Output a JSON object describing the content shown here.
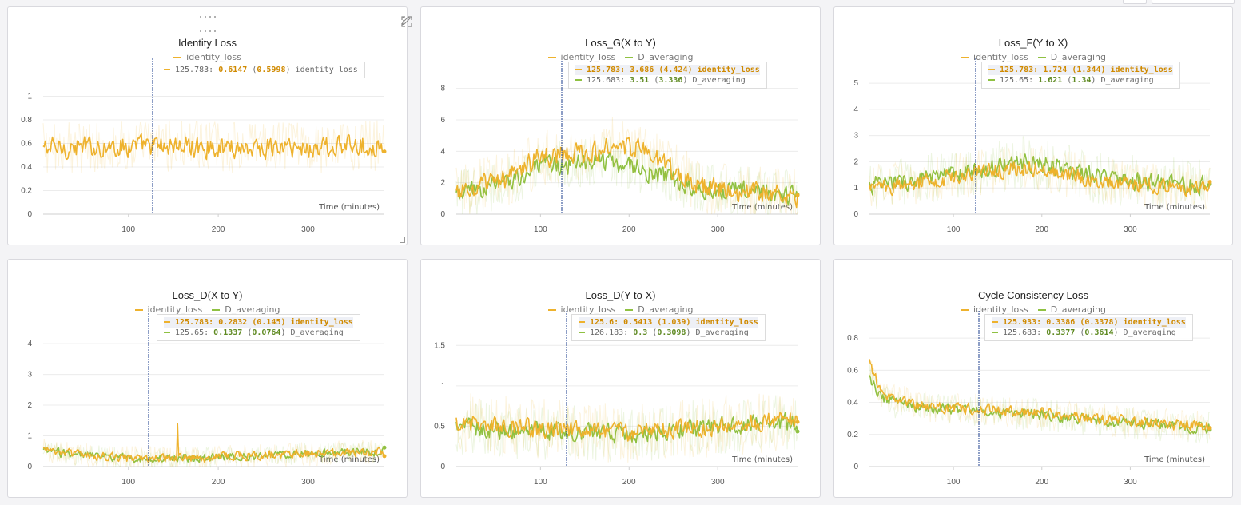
{
  "colors": {
    "identity_loss": "#EEB22D",
    "D_averaging": "#8FC142",
    "crosshair": "#1B3C8C",
    "grid": "#ececec",
    "axis": "#999999"
  },
  "legend": {
    "identity_loss": "identity_loss",
    "D_averaging": "D_averaging"
  },
  "panel_tools": {
    "drag": "drag-handle-icon",
    "edit": "pencil-icon",
    "fullscreen": "expand-icon",
    "menu": "more-vertical-icon"
  },
  "chart_data": [
    {
      "id": "identity",
      "type": "line",
      "title": "Identity Loss",
      "xlabel": "Time (minutes)",
      "ylabel": "",
      "xlim": [
        5,
        385
      ],
      "ylim": [
        0,
        1.2
      ],
      "xticks": [
        "100",
        "200",
        "300"
      ],
      "yticks": [
        "0",
        "0.2",
        "0.4",
        "0.6",
        "0.8",
        "1"
      ],
      "series": [
        {
          "name": "identity_loss",
          "key": "identity_loss",
          "noise": 0.08,
          "raw_noise": 0.22,
          "knots": [
            [
              5,
              0.56
            ],
            [
              60,
              0.57
            ],
            [
              120,
              0.58
            ],
            [
              200,
              0.57
            ],
            [
              300,
              0.56
            ],
            [
              385,
              0.59
            ]
          ]
        }
      ],
      "crosshair_x": 125.783,
      "tooltip": [
        {
          "x": "125.783",
          "value": "0.6147",
          "smoothed": "0.5998",
          "name": "identity_loss",
          "key": "identity_loss",
          "highlight": false
        }
      ]
    },
    {
      "id": "loss_g",
      "type": "line",
      "title": "Loss_G(X to Y)",
      "xlabel": "Time (minutes)",
      "ylabel": "",
      "xlim": [
        5,
        390
      ],
      "ylim": [
        0,
        9
      ],
      "xticks": [
        "100",
        "200",
        "300"
      ],
      "yticks": [
        "0",
        "2",
        "4",
        "6",
        "8"
      ],
      "series": [
        {
          "name": "D_averaging",
          "key": "D_averaging",
          "noise": 0.55,
          "raw_noise": 1.6,
          "knots": [
            [
              5,
              1.2
            ],
            [
              60,
              2.0
            ],
            [
              100,
              3.0
            ],
            [
              130,
              3.2
            ],
            [
              180,
              3.4
            ],
            [
              220,
              2.8
            ],
            [
              260,
              1.9
            ],
            [
              300,
              1.6
            ],
            [
              390,
              1.2
            ]
          ]
        },
        {
          "name": "identity_loss",
          "key": "identity_loss",
          "noise": 0.6,
          "raw_noise": 1.8,
          "knots": [
            [
              5,
              1.3
            ],
            [
              60,
              2.2
            ],
            [
              100,
              3.6
            ],
            [
              130,
              3.7
            ],
            [
              180,
              4.4
            ],
            [
              220,
              4.0
            ],
            [
              250,
              2.8
            ],
            [
              280,
              1.8
            ],
            [
              330,
              1.4
            ],
            [
              390,
              1.2
            ]
          ]
        }
      ],
      "crosshair_x": 125.783,
      "tooltip": [
        {
          "x": "125.783",
          "value": "3.686",
          "smoothed": "4.424",
          "name": "identity_loss",
          "key": "identity_loss",
          "highlight": true
        },
        {
          "x": "125.683",
          "value": "3.51",
          "smoothed": "3.336",
          "name": "D_averaging",
          "key": "D_averaging",
          "highlight": false
        }
      ]
    },
    {
      "id": "loss_f",
      "type": "line",
      "title": "Loss_F(Y to X)",
      "xlabel": "Time (minutes)",
      "ylabel": "",
      "xlim": [
        5,
        390
      ],
      "ylim": [
        0,
        5.4
      ],
      "xticks": [
        "100",
        "200",
        "300"
      ],
      "yticks": [
        "0",
        "1",
        "2",
        "3",
        "4",
        "5"
      ],
      "series": [
        {
          "name": "D_averaging",
          "key": "D_averaging",
          "noise": 0.3,
          "raw_noise": 1.0,
          "knots": [
            [
              5,
              1.1
            ],
            [
              60,
              1.3
            ],
            [
              120,
              1.6
            ],
            [
              180,
              2.0
            ],
            [
              220,
              1.8
            ],
            [
              260,
              1.4
            ],
            [
              320,
              1.2
            ],
            [
              390,
              1.1
            ]
          ]
        },
        {
          "name": "identity_loss",
          "key": "identity_loss",
          "noise": 0.28,
          "raw_noise": 0.9,
          "knots": [
            [
              5,
              1.0
            ],
            [
              60,
              1.2
            ],
            [
              120,
              1.5
            ],
            [
              180,
              1.8
            ],
            [
              220,
              1.6
            ],
            [
              260,
              1.3
            ],
            [
              320,
              1.1
            ],
            [
              390,
              1.0
            ]
          ]
        }
      ],
      "crosshair_x": 125.783,
      "tooltip": [
        {
          "x": "125.783",
          "value": "1.724",
          "smoothed": "1.344",
          "name": "identity_loss",
          "key": "identity_loss",
          "highlight": true
        },
        {
          "x": "125.65",
          "value": "1.621",
          "smoothed": "1.34",
          "name": "D_averaging",
          "key": "D_averaging",
          "highlight": false
        }
      ]
    },
    {
      "id": "loss_d_xy",
      "type": "line",
      "title": "Loss_D(X to Y)",
      "xlabel": "Time (minutes)",
      "ylabel": "",
      "xlim": [
        5,
        385
      ],
      "ylim": [
        0,
        4.6
      ],
      "xticks": [
        "100",
        "200",
        "300"
      ],
      "yticks": [
        "0",
        "1",
        "2",
        "3",
        "4"
      ],
      "series": [
        {
          "name": "D_averaging",
          "key": "D_averaging",
          "noise": 0.12,
          "raw_noise": 0.35,
          "knots": [
            [
              5,
              0.5
            ],
            [
              60,
              0.35
            ],
            [
              120,
              0.25
            ],
            [
              200,
              0.3
            ],
            [
              300,
              0.42
            ],
            [
              385,
              0.5
            ]
          ]
        },
        {
          "name": "identity_loss",
          "key": "identity_loss",
          "noise": 0.13,
          "raw_noise": 0.4,
          "knots": [
            [
              5,
              0.55
            ],
            [
              60,
              0.35
            ],
            [
              120,
              0.25
            ],
            [
              200,
              0.3
            ],
            [
              300,
              0.42
            ],
            [
              385,
              0.48
            ]
          ]
        }
      ],
      "spike": {
        "x": 155,
        "value": 1.4
      },
      "crosshair_x": 125.783,
      "tooltip": [
        {
          "x": "125.783",
          "value": "0.2832",
          "smoothed": "0.145",
          "name": "identity_loss",
          "key": "identity_loss",
          "highlight": true
        },
        {
          "x": "125.65",
          "value": "0.1337",
          "smoothed": "0.0764",
          "name": "D_averaging",
          "key": "D_averaging",
          "highlight": false
        }
      ]
    },
    {
      "id": "loss_d_yx",
      "type": "line",
      "title": "Loss_D(Y to X)",
      "xlabel": "Time (minutes)",
      "ylabel": "",
      "xlim": [
        5,
        390
      ],
      "ylim": [
        0,
        1.75
      ],
      "xticks": [
        "100",
        "200",
        "300"
      ],
      "yticks": [
        "0",
        "0.5",
        "1",
        "1.5"
      ],
      "series": [
        {
          "name": "D_averaging",
          "key": "D_averaging",
          "noise": 0.1,
          "raw_noise": 0.35,
          "knots": [
            [
              5,
              0.5
            ],
            [
              60,
              0.45
            ],
            [
              120,
              0.42
            ],
            [
              200,
              0.4
            ],
            [
              300,
              0.5
            ],
            [
              390,
              0.55
            ]
          ]
        },
        {
          "name": "identity_loss",
          "key": "identity_loss",
          "noise": 0.1,
          "raw_noise": 0.38,
          "knots": [
            [
              5,
              0.55
            ],
            [
              60,
              0.5
            ],
            [
              120,
              0.45
            ],
            [
              200,
              0.42
            ],
            [
              300,
              0.5
            ],
            [
              390,
              0.58
            ]
          ]
        }
      ],
      "crosshair_x": 125.6,
      "tooltip": [
        {
          "x": "125.6",
          "value": "0.5413",
          "smoothed": "1.039",
          "name": "identity_loss",
          "key": "identity_loss",
          "highlight": true
        },
        {
          "x": "126.183",
          "value": "0.3",
          "smoothed": "0.3098",
          "name": "D_averaging",
          "key": "D_averaging",
          "highlight": false
        }
      ]
    },
    {
      "id": "cycle",
      "type": "line",
      "title": "Cycle Consistency Loss",
      "xlabel": "Time (minutes)",
      "ylabel": "",
      "xlim": [
        5,
        390
      ],
      "ylim": [
        0,
        0.88
      ],
      "xticks": [
        "100",
        "200",
        "300"
      ],
      "yticks": [
        "0",
        "0.2",
        "0.4",
        "0.6",
        "0.8"
      ],
      "series": [
        {
          "name": "D_averaging",
          "key": "D_averaging",
          "noise": 0.03,
          "raw_noise": 0.1,
          "knots": [
            [
              5,
              0.55
            ],
            [
              20,
              0.42
            ],
            [
              60,
              0.37
            ],
            [
              120,
              0.35
            ],
            [
              200,
              0.32
            ],
            [
              300,
              0.27
            ],
            [
              390,
              0.24
            ]
          ]
        },
        {
          "name": "identity_loss",
          "key": "identity_loss",
          "noise": 0.03,
          "raw_noise": 0.1,
          "knots": [
            [
              5,
              0.65
            ],
            [
              20,
              0.44
            ],
            [
              60,
              0.38
            ],
            [
              120,
              0.36
            ],
            [
              200,
              0.33
            ],
            [
              300,
              0.28
            ],
            [
              390,
              0.25
            ]
          ]
        }
      ],
      "crosshair_x": 125.933,
      "tooltip": [
        {
          "x": "125.933",
          "value": "0.3386",
          "smoothed": "0.3378",
          "name": "identity_loss",
          "key": "identity_loss",
          "highlight": true
        },
        {
          "x": "125.683",
          "value": "0.3377",
          "smoothed": "0.3614",
          "name": "D_averaging",
          "key": "D_averaging",
          "highlight": false
        }
      ]
    }
  ]
}
